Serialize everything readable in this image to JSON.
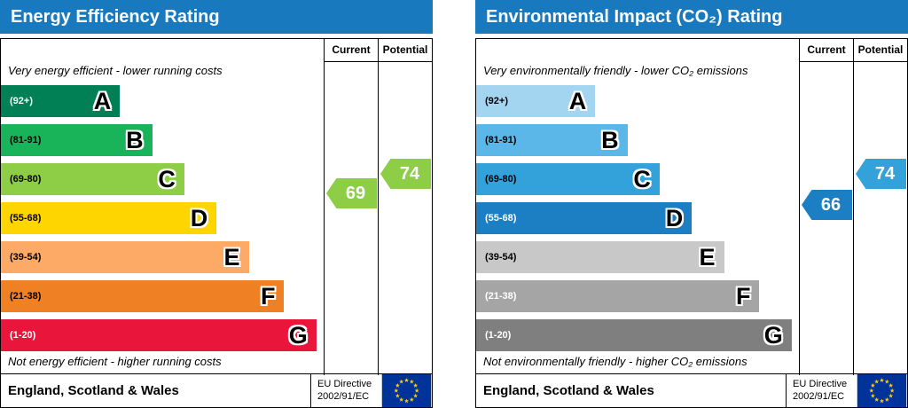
{
  "style": {
    "header_color": "#1879bf",
    "border_color": "#000000",
    "flag_blue": "#003399",
    "star_yellow": "#ffcc00"
  },
  "chart_data": [
    {
      "type": "bar",
      "title": "Energy Efficiency Rating",
      "columns": [
        "Current",
        "Potential"
      ],
      "top_note": "Very energy efficient - lower running costs",
      "bottom_note": "Not energy efficient - higher running costs",
      "bands": [
        {
          "letter": "A",
          "range": "(92+)",
          "color": "#008054",
          "range_color": "#ffffff",
          "width_pct": 37
        },
        {
          "letter": "B",
          "range": "(81-91)",
          "color": "#19b459",
          "range_color": "#000000",
          "width_pct": 47
        },
        {
          "letter": "C",
          "range": "(69-80)",
          "color": "#8dce46",
          "range_color": "#000000",
          "width_pct": 57
        },
        {
          "letter": "D",
          "range": "(55-68)",
          "color": "#ffd500",
          "range_color": "#000000",
          "width_pct": 67
        },
        {
          "letter": "E",
          "range": "(39-54)",
          "color": "#fcaa65",
          "range_color": "#000000",
          "width_pct": 77
        },
        {
          "letter": "F",
          "range": "(21-38)",
          "color": "#ef8023",
          "range_color": "#000000",
          "width_pct": 88
        },
        {
          "letter": "G",
          "range": "(1-20)",
          "color": "#e9153b",
          "range_color": "#ffffff",
          "width_pct": 98
        }
      ],
      "current": {
        "value": 69,
        "band": "C",
        "color": "#8dce46"
      },
      "potential": {
        "value": 74,
        "band": "C",
        "color": "#8dce46"
      },
      "footer": {
        "region": "England, Scotland & Wales",
        "directive_line1": "EU Directive",
        "directive_line2": "2002/91/EC"
      }
    },
    {
      "type": "bar",
      "title": "Environmental Impact (CO₂) Rating",
      "columns": [
        "Current",
        "Potential"
      ],
      "top_note": "Very environmentally friendly - lower CO₂ emissions",
      "bottom_note": "Not environmentally friendly - higher CO₂ emissions",
      "bands": [
        {
          "letter": "A",
          "range": "(92+)",
          "color": "#a3d5f0",
          "range_color": "#000000",
          "width_pct": 37
        },
        {
          "letter": "B",
          "range": "(81-91)",
          "color": "#5bb7e8",
          "range_color": "#000000",
          "width_pct": 47
        },
        {
          "letter": "C",
          "range": "(69-80)",
          "color": "#33a1da",
          "range_color": "#000000",
          "width_pct": 57
        },
        {
          "letter": "D",
          "range": "(55-68)",
          "color": "#1c7ec3",
          "range_color": "#ffffff",
          "width_pct": 67
        },
        {
          "letter": "E",
          "range": "(39-54)",
          "color": "#c8c8c8",
          "range_color": "#000000",
          "width_pct": 77
        },
        {
          "letter": "F",
          "range": "(21-38)",
          "color": "#a5a5a5",
          "range_color": "#ffffff",
          "width_pct": 88
        },
        {
          "letter": "G",
          "range": "(1-20)",
          "color": "#7f7f7f",
          "range_color": "#ffffff",
          "width_pct": 98
        }
      ],
      "current": {
        "value": 66,
        "band": "D",
        "color": "#1c7ec3"
      },
      "potential": {
        "value": 74,
        "band": "C",
        "color": "#33a1da"
      },
      "footer": {
        "region": "England, Scotland & Wales",
        "directive_line1": "EU Directive",
        "directive_line2": "2002/91/EC"
      }
    }
  ]
}
